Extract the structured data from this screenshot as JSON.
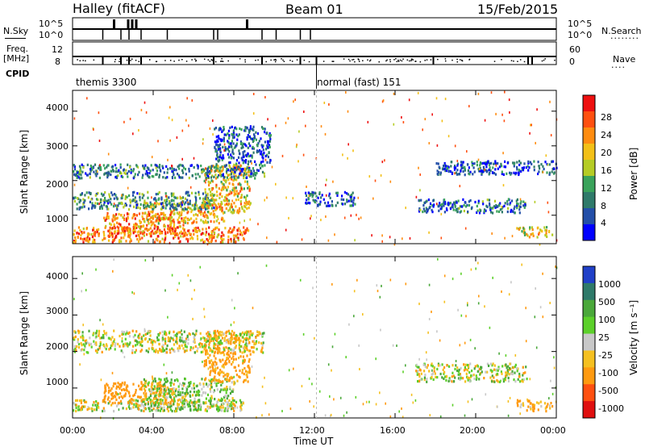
{
  "header": {
    "station": "Halley (fitACF)",
    "beam": "Beam 01",
    "date": "15/Feb/2015"
  },
  "strips": {
    "nsky_label": "N.Sky",
    "nsearch_label": "N.Search",
    "nsearch_dots": "········",
    "ticks_top": [
      "10^5",
      "10^0"
    ],
    "freq_label": "Freq.",
    "freq_unit": "[MHz]",
    "freq_ticks": [
      "12",
      "8"
    ],
    "nave_label": "Nave",
    "nave_dots": "····",
    "nave_ticks": [
      "60",
      "0"
    ],
    "cpid_label": "CPID",
    "cpid_1": "themis 3300",
    "cpid_2": "normal (fast) 151"
  },
  "axes": {
    "ylabel": "Slant Range [km]",
    "xlabel": "Time UT",
    "yticks": [
      "4000",
      "3000",
      "2000",
      "1000"
    ],
    "xticks": [
      "00:00",
      "04:00",
      "08:00",
      "12:00",
      "16:00",
      "20:00",
      "00:00"
    ]
  },
  "power_bar": {
    "label": "Power [dB]",
    "ticks": [
      "28",
      "24",
      "20",
      "16",
      "12",
      "8",
      "4"
    ],
    "colors": [
      "#0000ff",
      "#234fa8",
      "#2f7a6a",
      "#3aa35b",
      "#b5cc25",
      "#f3c017",
      "#ff8c10",
      "#ff5010",
      "#ee1010"
    ]
  },
  "velocity_bar": {
    "label": "Velocity [m s⁻¹]",
    "ticks": [
      "1000",
      "500",
      "100",
      "25",
      "-25",
      "-100",
      "-500",
      "-1000"
    ],
    "colors": [
      "#2040c8",
      "#2f7a6a",
      "#4aa83a",
      "#5cd02a",
      "#c8c8c8",
      "#f5c020",
      "#ff9a10",
      "#ff5010",
      "#e01010"
    ]
  },
  "chart_data": {
    "type": "heatmap",
    "title": "Halley (fitACF) Beam 01 15/Feb/2015",
    "xlabel": "Time UT",
    "ylabel": "Slant Range [km]",
    "xlim_hours": [
      0,
      24
    ],
    "ylim_km": [
      180,
      4600
    ],
    "panels": [
      {
        "name": "Power",
        "unit": "dB",
        "colorbar_range": [
          0,
          32
        ],
        "regions": [
          {
            "t": [
              0.0,
              8.7
            ],
            "range": [
              250,
              700
            ],
            "value": 24
          },
          {
            "t": [
              1.5,
              5.5
            ],
            "range": [
              500,
              1100
            ],
            "value": 24
          },
          {
            "t": [
              3.5,
              7.5
            ],
            "range": [
              800,
              1400
            ],
            "value": 20
          },
          {
            "t": [
              6.5,
              8.8
            ],
            "range": [
              1100,
              2500
            ],
            "value": 20
          },
          {
            "t": [
              0.0,
              7.0
            ],
            "range": [
              1200,
              1700
            ],
            "value": 10
          },
          {
            "t": [
              0.0,
              9.5
            ],
            "range": [
              2100,
              2500
            ],
            "value": 8
          },
          {
            "t": [
              7.0,
              9.8
            ],
            "range": [
              2500,
              3600
            ],
            "value": 6
          },
          {
            "t": [
              11.5,
              14.0
            ],
            "range": [
              1300,
              1700
            ],
            "value": 6
          },
          {
            "t": [
              17.0,
              22.5
            ],
            "range": [
              1100,
              1500
            ],
            "value": 8
          },
          {
            "t": [
              18.0,
              24.0
            ],
            "range": [
              2200,
              2600
            ],
            "value": 6
          },
          {
            "t": [
              22.0,
              23.8
            ],
            "range": [
              400,
              700
            ],
            "value": 18
          }
        ]
      },
      {
        "name": "Velocity",
        "unit": "m s-1",
        "colorbar_ticks": [
          1000,
          500,
          100,
          25,
          -25,
          -100,
          -500,
          -1000
        ],
        "regions": [
          {
            "t": [
              0.0,
              8.5
            ],
            "range": [
              400,
              700
            ],
            "value": 0
          },
          {
            "t": [
              1.5,
              5.0
            ],
            "range": [
              600,
              1200
            ],
            "value": -300
          },
          {
            "t": [
              3.5,
              8.0
            ],
            "range": [
              400,
              1300
            ],
            "value": 60
          },
          {
            "t": [
              6.5,
              8.8
            ],
            "range": [
              1200,
              2600
            ],
            "value": -200
          },
          {
            "t": [
              0.0,
              9.5
            ],
            "range": [
              2000,
              2600
            ],
            "value": 0
          },
          {
            "t": [
              17.0,
              22.5
            ],
            "range": [
              1200,
              1700
            ],
            "value": 0
          },
          {
            "t": [
              22.0,
              23.8
            ],
            "range": [
              400,
              700
            ],
            "value": -150
          }
        ]
      }
    ]
  }
}
